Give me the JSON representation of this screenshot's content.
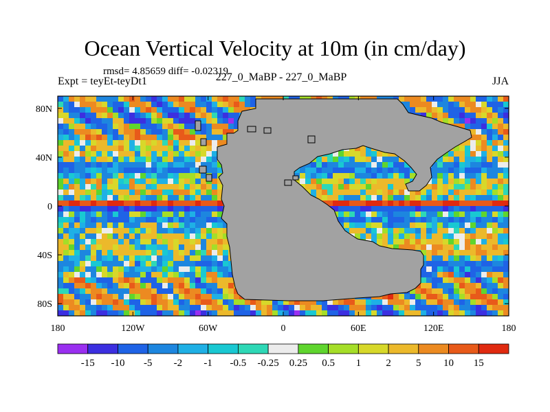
{
  "title": "Ocean Vertical Velocity at 10m (in cm/day)",
  "stats_line": "rmsd= 4.85659 diff= -0.02319",
  "experiment_label": "Expt = teyEt-teyDt1",
  "period_label": "227_0_MaBP - 227_0_MaBP",
  "season_label": "JJA",
  "chart_data": {
    "type": "heatmap",
    "variable": "Ocean Vertical Velocity at 10m",
    "units": "cm/day",
    "x_ticks": [
      "180",
      "120W",
      "60W",
      "0",
      "60E",
      "120E",
      "180"
    ],
    "y_ticks": [
      "80N",
      "40N",
      "0",
      "40S",
      "80S"
    ],
    "xlim": [
      -180,
      180
    ],
    "ylim": [
      -90,
      90
    ],
    "colorbar_labels": [
      "-15",
      "-10",
      "-5",
      "-2",
      "-1",
      "-0.5",
      "-0.25",
      "0.25",
      "0.5",
      "1",
      "2",
      "5",
      "10",
      "15"
    ],
    "colorbar_colors": [
      "#9a2ff0",
      "#3c2fe0",
      "#1f63e6",
      "#1d86df",
      "#1fb0e5",
      "#19c8d2",
      "#2ed8b6",
      "#ececec",
      "#5fd52e",
      "#a5de28",
      "#d7d82a",
      "#ecb92b",
      "#ec8a21",
      "#e85a1a",
      "#e02a10"
    ],
    "land_color": "#a2a2a2"
  }
}
